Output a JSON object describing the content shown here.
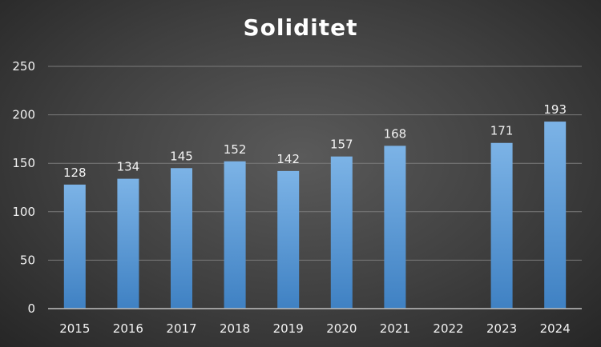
{
  "chart_data": {
    "type": "bar",
    "title": "Soliditet",
    "categories": [
      "2015",
      "2016",
      "2017",
      "2018",
      "2019",
      "2020",
      "2021",
      "2022",
      "2023",
      "2024"
    ],
    "series": [
      {
        "values": [
          128,
          134,
          145,
          152,
          142,
          157,
          168,
          null,
          171,
          193
        ]
      }
    ],
    "data_labels": [
      "128",
      "134",
      "145",
      "152",
      "142",
      "157",
      "168",
      "",
      "171",
      "193"
    ],
    "y_ticks": [
      "0",
      "50",
      "100",
      "150",
      "200",
      "250"
    ],
    "ylim": [
      0,
      250
    ],
    "xlabel": "",
    "ylabel": "",
    "grid": true,
    "legend": "none",
    "bar_color": "#5b9bd5",
    "bar_color_light": "#7cb3e6",
    "bar_color_dark": "#3f81c3"
  }
}
